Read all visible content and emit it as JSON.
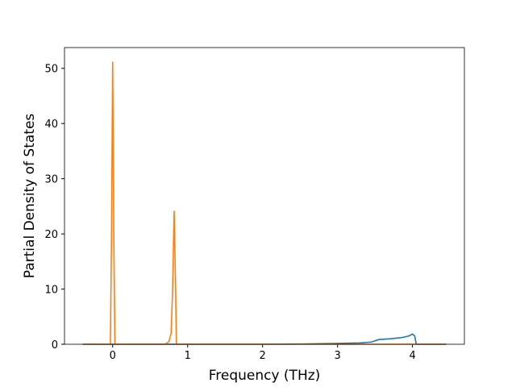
{
  "chart_data": {
    "type": "line",
    "xlabel": "Frequency (THz)",
    "ylabel": "Partial Density of States",
    "xlim": [
      -0.6425,
      4.6925
    ],
    "ylim": [
      0,
      53.76
    ],
    "xticks": [
      0,
      1,
      2,
      3,
      4
    ],
    "yticks": [
      0,
      10,
      20,
      30,
      40,
      50
    ],
    "series": [
      {
        "color": "#1f77b4",
        "x": [
          -0.4,
          2.0,
          2.5,
          3.0,
          3.3,
          3.45,
          3.55,
          3.7,
          3.85,
          3.95,
          4.0,
          4.03,
          4.05,
          4.45
        ],
        "values": [
          0,
          0,
          0.05,
          0.15,
          0.25,
          0.4,
          0.85,
          1.0,
          1.2,
          1.5,
          1.85,
          1.5,
          0,
          0
        ]
      },
      {
        "color": "#ff7f0e",
        "x": [
          -0.4,
          -0.03,
          -0.015,
          0,
          0.015,
          0.03,
          0.7,
          0.75,
          0.78,
          0.8,
          0.82,
          0.84,
          0.85,
          4.45
        ],
        "values": [
          0,
          0,
          20,
          51.2,
          20,
          0,
          0,
          0.5,
          2,
          10,
          24.2,
          10,
          0,
          0
        ]
      }
    ]
  }
}
